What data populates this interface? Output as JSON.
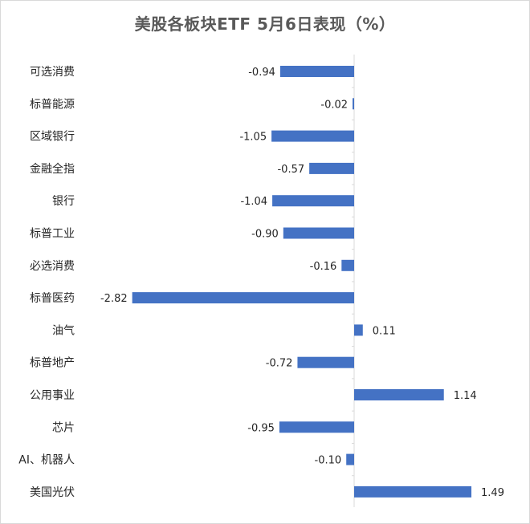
{
  "chart_data": {
    "type": "bar",
    "orientation": "horizontal",
    "title": "美股各板块ETF 5月6日表现（%）",
    "categories": [
      "可选消费",
      "标普能源",
      "区域银行",
      "金融全指",
      "银行",
      "标普工业",
      "必选消费",
      "标普医药",
      "油气",
      "标普地产",
      "公用事业",
      "芯片",
      "AI、机器人",
      "美国光伏"
    ],
    "values": [
      -0.94,
      -0.02,
      -1.05,
      -0.57,
      -1.04,
      -0.9,
      -0.16,
      -2.82,
      0.11,
      -0.72,
      1.14,
      -0.95,
      -0.1,
      1.49
    ],
    "value_labels": [
      "-0.94",
      "-0.02",
      "-1.05",
      "-0.57",
      "-1.04",
      "-0.90",
      "-0.16",
      "-2.82",
      "0.11",
      "-0.72",
      "1.14",
      "-0.95",
      "-0.10",
      "1.49"
    ],
    "xlim": [
      -3.0,
      2.0
    ],
    "bar_color": "#4472C4",
    "grid": false,
    "legend": "none"
  }
}
